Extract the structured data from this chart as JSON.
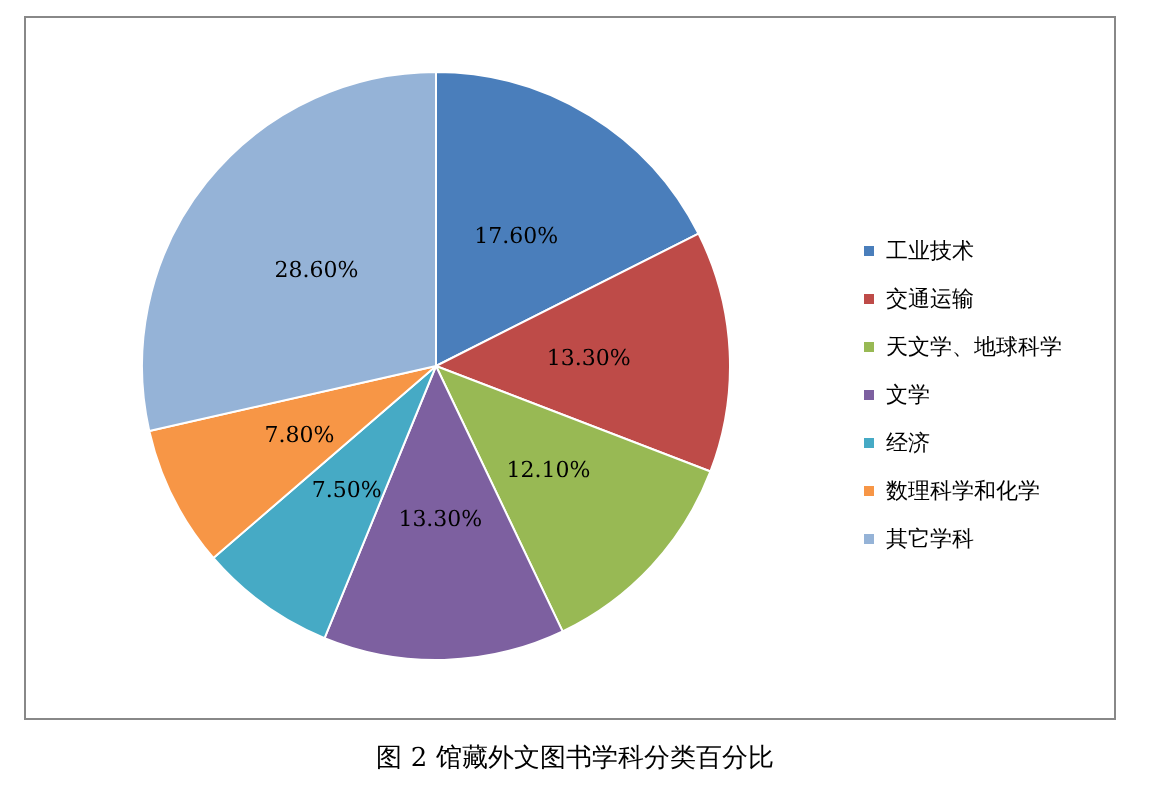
{
  "chart_data": {
    "type": "pie",
    "title": "图 2 馆藏外文图书学科分类百分比",
    "categories": [
      "工业技术",
      "交通运输",
      "天文学、地球科学",
      "文学",
      "经济",
      "数理科学和化学",
      "其它学科"
    ],
    "values": [
      17.6,
      13.3,
      12.1,
      13.3,
      7.5,
      7.8,
      28.6
    ],
    "value_labels": [
      "17.60%",
      "13.30%",
      "12.10%",
      "13.30%",
      "7.50%",
      "7.80%",
      "28.60%"
    ],
    "colors": [
      "#4a7ebb",
      "#be4b48",
      "#98b954",
      "#7d60a0",
      "#46aac5",
      "#f79646",
      "#95b3d7"
    ],
    "legend": "right"
  }
}
